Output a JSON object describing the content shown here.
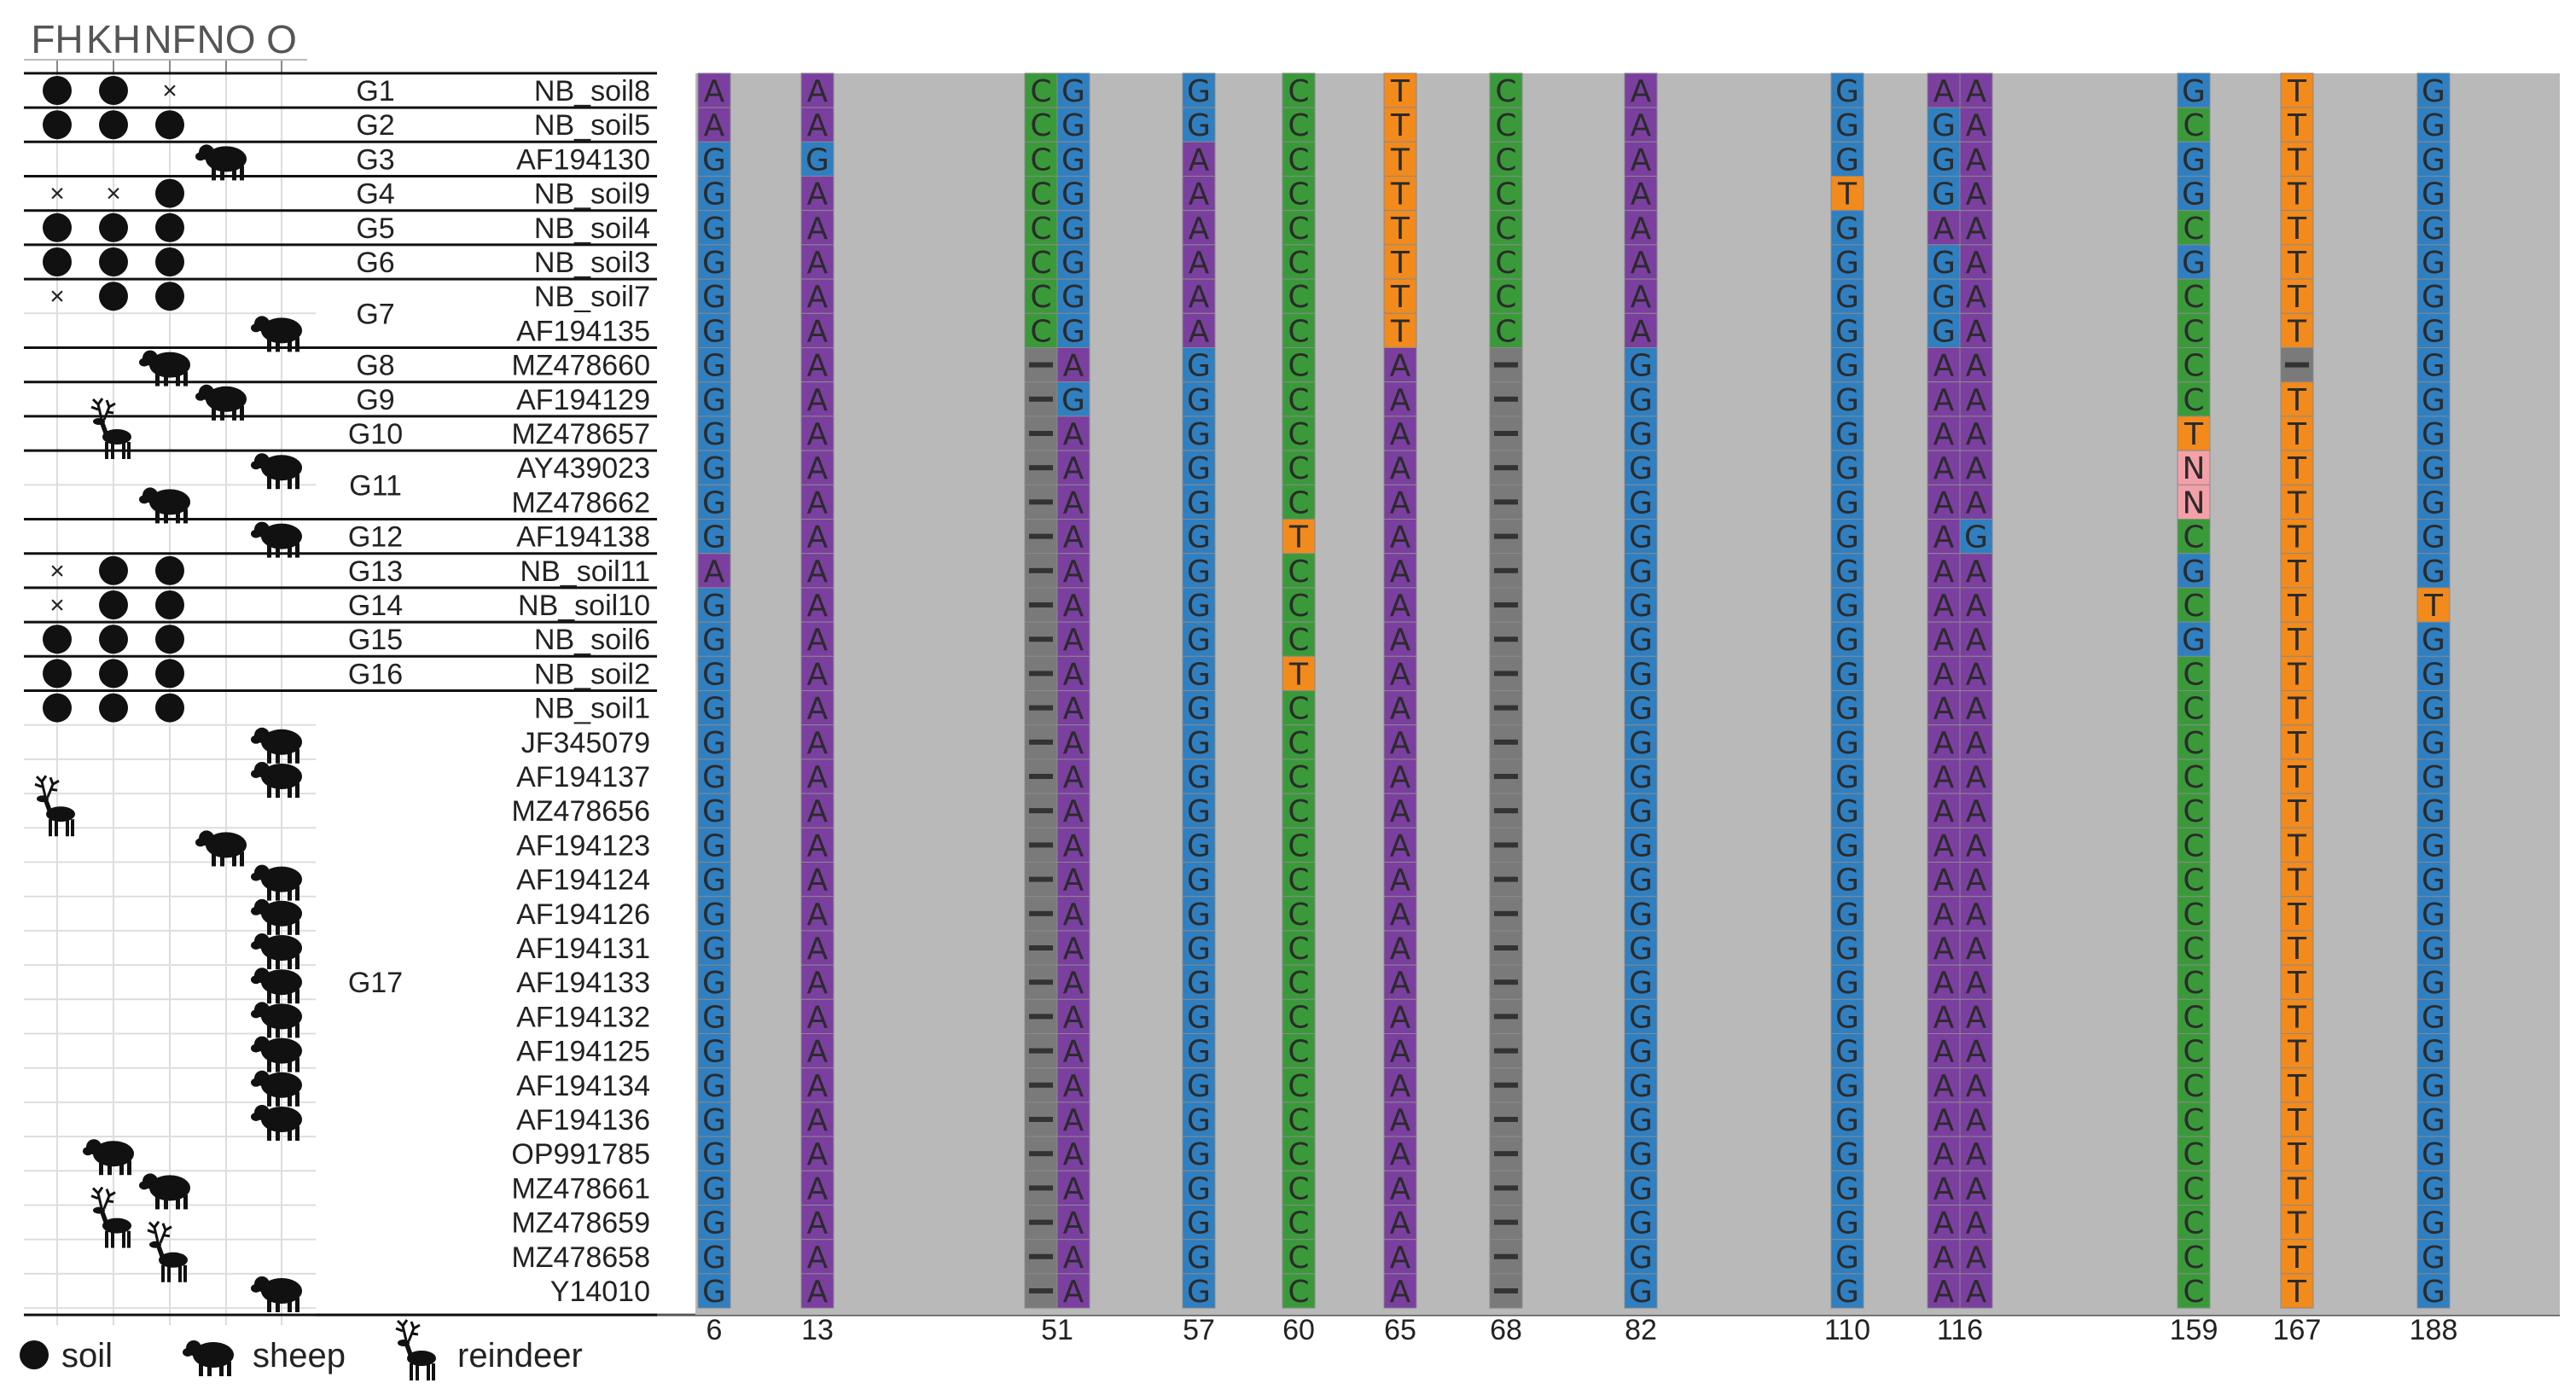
{
  "columns": [
    "FH",
    "KH",
    "NF",
    "NO",
    "O"
  ],
  "positions": [
    "6",
    "13",
    "51",
    "57",
    "60",
    "65",
    "68",
    "82",
    "110",
    "116",
    "159",
    "167",
    "188"
  ],
  "colors": {
    "A": "#7b3fa0",
    "C": "#3a9a3a",
    "G": "#2f7fc1",
    "T": "#f28a1c",
    "N": "#f4a0a8",
    "-": "#7a7a7a",
    "background": "#b9b9b9",
    "gridline": "#dddddd"
  },
  "groups": [
    {
      "label": "G1",
      "rows": [
        0
      ]
    },
    {
      "label": "G2",
      "rows": [
        1
      ]
    },
    {
      "label": "G3",
      "rows": [
        2
      ]
    },
    {
      "label": "G4",
      "rows": [
        3
      ]
    },
    {
      "label": "G5",
      "rows": [
        4
      ]
    },
    {
      "label": "G6",
      "rows": [
        5
      ]
    },
    {
      "label": "G7",
      "rows": [
        6,
        7
      ]
    },
    {
      "label": "G8",
      "rows": [
        8
      ]
    },
    {
      "label": "G9",
      "rows": [
        9
      ]
    },
    {
      "label": "G10",
      "rows": [
        10
      ]
    },
    {
      "label": "G11",
      "rows": [
        11,
        12
      ]
    },
    {
      "label": "G12",
      "rows": [
        13
      ]
    },
    {
      "label": "G13",
      "rows": [
        14
      ]
    },
    {
      "label": "G14",
      "rows": [
        15
      ]
    },
    {
      "label": "G15",
      "rows": [
        16
      ]
    },
    {
      "label": "G16",
      "rows": [
        17
      ]
    },
    {
      "label": "G17",
      "rows": [
        18,
        19,
        20,
        21,
        22,
        23,
        24,
        25,
        26,
        27,
        28,
        29,
        30,
        31,
        32,
        33,
        34
      ]
    }
  ],
  "sequences": [
    {
      "id": "NB_soil8",
      "bases": [
        "A",
        "A",
        "CG",
        "G",
        "C",
        "T",
        "C",
        "A",
        "G",
        "AA",
        "G",
        "T",
        "G"
      ],
      "marks": [
        "soil",
        "soil",
        "x",
        "",
        ""
      ]
    },
    {
      "id": "NB_soil5",
      "bases": [
        "A",
        "A",
        "CG",
        "G",
        "C",
        "T",
        "C",
        "A",
        "G",
        "GA",
        "C",
        "T",
        "G"
      ],
      "marks": [
        "soil",
        "soil",
        "soil",
        "",
        ""
      ]
    },
    {
      "id": "AF194130",
      "bases": [
        "G",
        "G",
        "CG",
        "A",
        "C",
        "T",
        "C",
        "A",
        "G",
        "GA",
        "G",
        "T",
        "G"
      ],
      "marks": [
        "",
        "",
        "",
        "sheep",
        ""
      ]
    },
    {
      "id": "NB_soil9",
      "bases": [
        "G",
        "A",
        "CG",
        "A",
        "C",
        "T",
        "C",
        "A",
        "T",
        "GA",
        "G",
        "T",
        "G"
      ],
      "marks": [
        "x",
        "x",
        "soil",
        "",
        ""
      ]
    },
    {
      "id": "NB_soil4",
      "bases": [
        "G",
        "A",
        "CG",
        "A",
        "C",
        "T",
        "C",
        "A",
        "G",
        "AA",
        "C",
        "T",
        "G"
      ],
      "marks": [
        "soil",
        "soil",
        "soil",
        "",
        ""
      ]
    },
    {
      "id": "NB_soil3",
      "bases": [
        "G",
        "A",
        "CG",
        "A",
        "C",
        "T",
        "C",
        "A",
        "G",
        "GA",
        "G",
        "T",
        "G"
      ],
      "marks": [
        "soil",
        "soil",
        "soil",
        "",
        ""
      ]
    },
    {
      "id": "NB_soil7",
      "bases": [
        "G",
        "A",
        "CG",
        "A",
        "C",
        "T",
        "C",
        "A",
        "G",
        "GA",
        "C",
        "T",
        "G"
      ],
      "marks": [
        "x",
        "soil",
        "soil",
        "",
        ""
      ]
    },
    {
      "id": "AF194135",
      "bases": [
        "G",
        "A",
        "CG",
        "A",
        "C",
        "T",
        "C",
        "A",
        "G",
        "GA",
        "C",
        "T",
        "G"
      ],
      "marks": [
        "",
        "",
        "",
        "",
        "sheep"
      ]
    },
    {
      "id": "MZ478660",
      "bases": [
        "G",
        "A",
        "-A",
        "G",
        "C",
        "A",
        "-",
        "G",
        "G",
        "AA",
        "C",
        "-",
        "G"
      ],
      "marks": [
        "",
        "",
        "sheep",
        "",
        ""
      ]
    },
    {
      "id": "AF194129",
      "bases": [
        "G",
        "A",
        "-G",
        "G",
        "C",
        "A",
        "-",
        "G",
        "G",
        "AA",
        "C",
        "T",
        "G"
      ],
      "marks": [
        "",
        "",
        "",
        "sheep",
        ""
      ]
    },
    {
      "id": "MZ478657",
      "bases": [
        "G",
        "A",
        "-A",
        "G",
        "C",
        "A",
        "-",
        "G",
        "G",
        "AA",
        "T",
        "T",
        "G"
      ],
      "marks": [
        "",
        "reindeer",
        "",
        "",
        ""
      ]
    },
    {
      "id": "AY439023",
      "bases": [
        "G",
        "A",
        "-A",
        "G",
        "C",
        "A",
        "-",
        "G",
        "G",
        "AA",
        "N",
        "T",
        "G"
      ],
      "marks": [
        "",
        "",
        "",
        "",
        "sheep"
      ]
    },
    {
      "id": "MZ478662",
      "bases": [
        "G",
        "A",
        "-A",
        "G",
        "C",
        "A",
        "-",
        "G",
        "G",
        "AA",
        "N",
        "T",
        "G"
      ],
      "marks": [
        "",
        "",
        "sheep",
        "",
        ""
      ]
    },
    {
      "id": "AF194138",
      "bases": [
        "G",
        "A",
        "-A",
        "G",
        "T",
        "A",
        "-",
        "G",
        "G",
        "AG",
        "C",
        "T",
        "G"
      ],
      "marks": [
        "",
        "",
        "",
        "",
        "sheep"
      ]
    },
    {
      "id": "NB_soil11",
      "bases": [
        "A",
        "A",
        "-A",
        "G",
        "C",
        "A",
        "-",
        "G",
        "G",
        "AA",
        "G",
        "T",
        "G"
      ],
      "marks": [
        "x",
        "soil",
        "soil",
        "",
        ""
      ]
    },
    {
      "id": "NB_soil10",
      "bases": [
        "G",
        "A",
        "-A",
        "G",
        "C",
        "A",
        "-",
        "G",
        "G",
        "AA",
        "C",
        "T",
        "T"
      ],
      "marks": [
        "x",
        "soil",
        "soil",
        "",
        ""
      ]
    },
    {
      "id": "NB_soil6",
      "bases": [
        "G",
        "A",
        "-A",
        "G",
        "C",
        "A",
        "-",
        "G",
        "G",
        "AA",
        "G",
        "T",
        "G"
      ],
      "marks": [
        "soil",
        "soil",
        "soil",
        "",
        ""
      ]
    },
    {
      "id": "NB_soil2",
      "bases": [
        "G",
        "A",
        "-A",
        "G",
        "T",
        "A",
        "-",
        "G",
        "G",
        "AA",
        "C",
        "T",
        "G"
      ],
      "marks": [
        "soil",
        "soil",
        "soil",
        "",
        ""
      ]
    },
    {
      "id": "NB_soil1",
      "bases": [
        "G",
        "A",
        "-A",
        "G",
        "C",
        "A",
        "-",
        "G",
        "G",
        "AA",
        "C",
        "T",
        "G"
      ],
      "marks": [
        "soil",
        "soil",
        "soil",
        "",
        ""
      ]
    },
    {
      "id": "JF345079",
      "bases": [
        "G",
        "A",
        "-A",
        "G",
        "C",
        "A",
        "-",
        "G",
        "G",
        "AA",
        "C",
        "T",
        "G"
      ],
      "marks": [
        "",
        "",
        "",
        "",
        "sheep"
      ]
    },
    {
      "id": "AF194137",
      "bases": [
        "G",
        "A",
        "-A",
        "G",
        "C",
        "A",
        "-",
        "G",
        "G",
        "AA",
        "C",
        "T",
        "G"
      ],
      "marks": [
        "",
        "",
        "",
        "",
        "sheep"
      ]
    },
    {
      "id": "MZ478656",
      "bases": [
        "G",
        "A",
        "-A",
        "G",
        "C",
        "A",
        "-",
        "G",
        "G",
        "AA",
        "C",
        "T",
        "G"
      ],
      "marks": [
        "reindeer",
        "",
        "",
        "",
        ""
      ]
    },
    {
      "id": "AF194123",
      "bases": [
        "G",
        "A",
        "-A",
        "G",
        "C",
        "A",
        "-",
        "G",
        "G",
        "AA",
        "C",
        "T",
        "G"
      ],
      "marks": [
        "",
        "",
        "",
        "sheep",
        ""
      ]
    },
    {
      "id": "AF194124",
      "bases": [
        "G",
        "A",
        "-A",
        "G",
        "C",
        "A",
        "-",
        "G",
        "G",
        "AA",
        "C",
        "T",
        "G"
      ],
      "marks": [
        "",
        "",
        "",
        "",
        "sheep"
      ]
    },
    {
      "id": "AF194126",
      "bases": [
        "G",
        "A",
        "-A",
        "G",
        "C",
        "A",
        "-",
        "G",
        "G",
        "AA",
        "C",
        "T",
        "G"
      ],
      "marks": [
        "",
        "",
        "",
        "",
        "sheep"
      ]
    },
    {
      "id": "AF194131",
      "bases": [
        "G",
        "A",
        "-A",
        "G",
        "C",
        "A",
        "-",
        "G",
        "G",
        "AA",
        "C",
        "T",
        "G"
      ],
      "marks": [
        "",
        "",
        "",
        "",
        "sheep"
      ]
    },
    {
      "id": "AF194133",
      "bases": [
        "G",
        "A",
        "-A",
        "G",
        "C",
        "A",
        "-",
        "G",
        "G",
        "AA",
        "C",
        "T",
        "G"
      ],
      "marks": [
        "",
        "",
        "",
        "",
        "sheep"
      ]
    },
    {
      "id": "AF194132",
      "bases": [
        "G",
        "A",
        "-A",
        "G",
        "C",
        "A",
        "-",
        "G",
        "G",
        "AA",
        "C",
        "T",
        "G"
      ],
      "marks": [
        "",
        "",
        "",
        "",
        "sheep"
      ]
    },
    {
      "id": "AF194125",
      "bases": [
        "G",
        "A",
        "-A",
        "G",
        "C",
        "A",
        "-",
        "G",
        "G",
        "AA",
        "C",
        "T",
        "G"
      ],
      "marks": [
        "",
        "",
        "",
        "",
        "sheep"
      ]
    },
    {
      "id": "AF194134",
      "bases": [
        "G",
        "A",
        "-A",
        "G",
        "C",
        "A",
        "-",
        "G",
        "G",
        "AA",
        "C",
        "T",
        "G"
      ],
      "marks": [
        "",
        "",
        "",
        "",
        "sheep"
      ]
    },
    {
      "id": "AF194136",
      "bases": [
        "G",
        "A",
        "-A",
        "G",
        "C",
        "A",
        "-",
        "G",
        "G",
        "AA",
        "C",
        "T",
        "G"
      ],
      "marks": [
        "",
        "",
        "",
        "",
        "sheep"
      ]
    },
    {
      "id": "OP991785",
      "bases": [
        "G",
        "A",
        "-A",
        "G",
        "C",
        "A",
        "-",
        "G",
        "G",
        "AA",
        "C",
        "T",
        "G"
      ],
      "marks": [
        "",
        "sheep",
        "",
        "",
        ""
      ]
    },
    {
      "id": "MZ478661",
      "bases": [
        "G",
        "A",
        "-A",
        "G",
        "C",
        "A",
        "-",
        "G",
        "G",
        "AA",
        "C",
        "T",
        "G"
      ],
      "marks": [
        "",
        "",
        "sheep",
        "",
        ""
      ]
    },
    {
      "id": "MZ478659",
      "bases": [
        "G",
        "A",
        "-A",
        "G",
        "C",
        "A",
        "-",
        "G",
        "G",
        "AA",
        "C",
        "T",
        "G"
      ],
      "marks": [
        "",
        "reindeer",
        "",
        "",
        ""
      ]
    },
    {
      "id": "MZ478658",
      "bases": [
        "G",
        "A",
        "-A",
        "G",
        "C",
        "A",
        "-",
        "G",
        "G",
        "AA",
        "C",
        "T",
        "G"
      ],
      "marks": [
        "",
        "",
        "reindeer",
        "",
        ""
      ]
    },
    {
      "id": "Y14010",
      "bases": [
        "G",
        "A",
        "-A",
        "G",
        "C",
        "A",
        "-",
        "G",
        "G",
        "AA",
        "C",
        "T",
        "G"
      ],
      "marks": [
        "",
        "",
        "",
        "",
        "sheep"
      ]
    }
  ],
  "legend": [
    {
      "icon": "soil",
      "label": "soil"
    },
    {
      "icon": "sheep",
      "label": "sheep"
    },
    {
      "icon": "reindeer",
      "label": "reindeer"
    }
  ]
}
